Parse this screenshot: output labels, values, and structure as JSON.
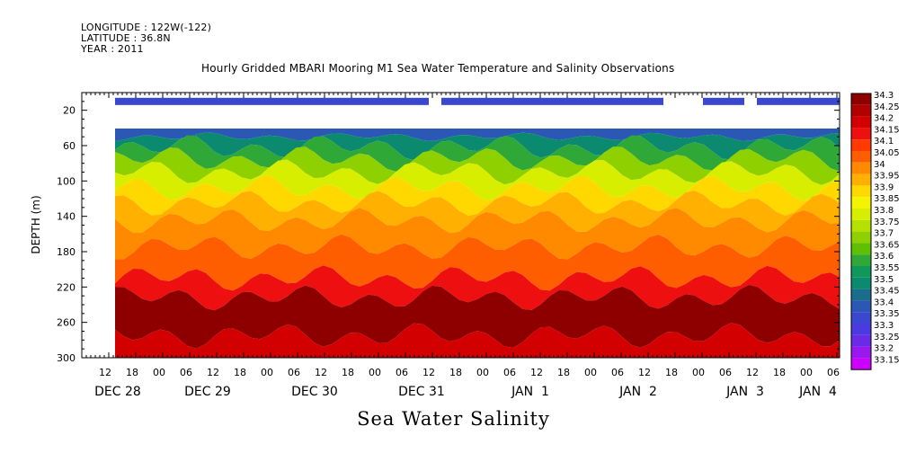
{
  "header": {
    "longitude": "LONGITUDE : 122W(-122)",
    "latitude": "LATITUDE : 36.8N",
    "year": "YEAR : 2011"
  },
  "chart_data": {
    "type": "heatmap",
    "title": "Hourly Gridded MBARI Mooring M1 Sea Water Temperature and Salinity Observations",
    "ylabel": "DEPTH (m)",
    "xlabel": "Sea Water Salinity",
    "y_axis": {
      "reversed": true,
      "ylim": [
        300,
        0
      ],
      "ticks": [
        20,
        60,
        100,
        140,
        180,
        220,
        260,
        300
      ]
    },
    "x_axis": {
      "hour_ticks": [
        "12",
        "18",
        "00",
        "06",
        "12",
        "18",
        "00",
        "06",
        "12",
        "18",
        "00",
        "06",
        "12",
        "18",
        "00",
        "06",
        "12",
        "18",
        "00",
        "06",
        "12",
        "18",
        "00",
        "06",
        "12",
        "18",
        "00",
        "06"
      ],
      "date_labels": [
        "DEC 28",
        "DEC 29",
        "DEC 30",
        "DEC 31",
        "JAN  1",
        "JAN  2",
        "JAN  3",
        "JAN  4"
      ]
    },
    "colorbar": {
      "levels": [
        "34.3",
        "34.25",
        "34.2",
        "34.15",
        "34.1",
        "34.05",
        "34",
        "33.95",
        "33.9",
        "33.85",
        "33.8",
        "33.75",
        "33.7",
        "33.65",
        "33.6",
        "33.55",
        "33.5",
        "33.45",
        "33.4",
        "33.35",
        "33.3",
        "33.25",
        "33.2",
        "33.15"
      ],
      "colors": [
        "#8e0000",
        "#b00000",
        "#d20000",
        "#ee1010",
        "#ff3a00",
        "#ff5e00",
        "#ff8a00",
        "#ffb000",
        "#ffd800",
        "#f4f400",
        "#d8ee00",
        "#b6e000",
        "#8ed000",
        "#5ec000",
        "#30a838",
        "#10985a",
        "#0c8a70",
        "#1a6e8c",
        "#2a58b4",
        "#3a48d0",
        "#4a3ae0",
        "#6a2ae8",
        "#9a18f0",
        "#cc00ff"
      ],
      "placement": "right"
    },
    "depth_bands": [
      {
        "top": 40,
        "bottom": 50,
        "salinity": 33.4
      },
      {
        "top": 50,
        "bottom": 62,
        "salinity": 33.5
      },
      {
        "top": 62,
        "bottom": 75,
        "salinity": 33.6
      },
      {
        "top": 75,
        "bottom": 90,
        "salinity": 33.7
      },
      {
        "top": 90,
        "bottom": 108,
        "salinity": 33.8
      },
      {
        "top": 108,
        "bottom": 125,
        "salinity": 33.9
      },
      {
        "top": 125,
        "bottom": 145,
        "salinity": 33.95
      },
      {
        "top": 145,
        "bottom": 175,
        "salinity": 34.0
      },
      {
        "top": 175,
        "bottom": 210,
        "salinity": 34.05
      },
      {
        "top": 210,
        "bottom": 232,
        "salinity": 34.15
      },
      {
        "top": 232,
        "bottom": 275,
        "salinity": 34.3
      },
      {
        "top": 275,
        "bottom": 300,
        "salinity": 34.2
      }
    ],
    "surface_sensor": {
      "depth": 10,
      "salinity": 33.35
    }
  }
}
